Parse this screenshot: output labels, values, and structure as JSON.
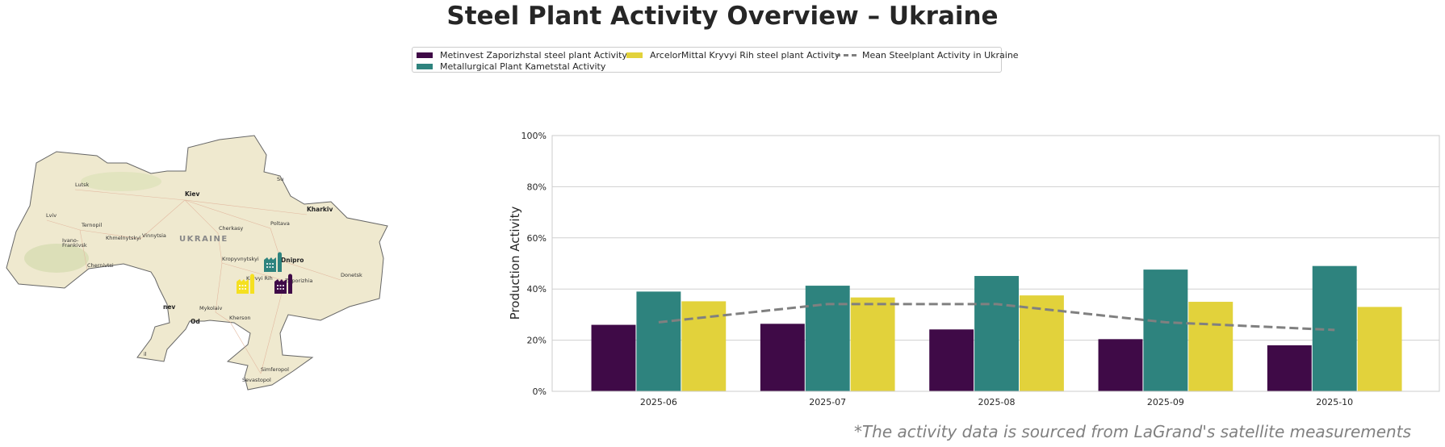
{
  "title": "Steel Plant Activity Overview – Ukraine",
  "footnote": "*The activity data is sourced from LaGrand's satellite measurements",
  "legend": {
    "items": [
      {
        "label": "Metinvest Zaporizhstal steel plant Activity",
        "color": "#3f0a47"
      },
      {
        "label": "Metallurgical Plant Kametstal Activity",
        "color": "#2e837e"
      },
      {
        "label": "ArcelorMittal Kryvyi Rih steel plant Activity",
        "color": "#e2d23b"
      },
      {
        "label": "Mean Steelplant Activity in Ukraine",
        "color": "#808080"
      }
    ]
  },
  "map": {
    "country_label": "UKRAINE",
    "cities": [
      "Lutsk",
      "Kiev",
      "Kharkiv",
      "Su",
      "Lviv",
      "Ternopil",
      "Khmelnytskyi",
      "Vinnytsia",
      "Cherkasy",
      "Poltava",
      "Ivano-",
      "Frankivsk",
      "Chernivtsi",
      "Kropyvnytskyi",
      "Dnipro",
      "Kryvyi Rih",
      "Zaporizhia",
      "Donetsk",
      "Mykolaiv",
      "Kherson",
      "Simferopol",
      "Sevastopol",
      "nev",
      "Od",
      "il"
    ],
    "plants": [
      {
        "name": "Metallurgical Plant Kametstal",
        "color": "#2e837e",
        "icon": "factory-icon"
      },
      {
        "name": "ArcelorMittal Kryvyi Rih",
        "color": "#f5e020",
        "icon": "factory-icon"
      },
      {
        "name": "Metinvest Zaporizhstal",
        "color": "#3f0a47",
        "icon": "factory-icon"
      }
    ]
  },
  "chart_data": {
    "type": "bar",
    "title": "Steel Plant Activity Overview – Ukraine",
    "xlabel": "",
    "ylabel": "Production Activity",
    "ylim": [
      0,
      100
    ],
    "yticks": [
      "0%",
      "20%",
      "40%",
      "60%",
      "80%",
      "100%"
    ],
    "grid": "horizontal",
    "legend_placement": "top-center",
    "categories": [
      "2025-06",
      "2025-07",
      "2025-08",
      "2025-09",
      "2025-10"
    ],
    "series": [
      {
        "name": "Metinvest Zaporizhstal steel plant Activity",
        "color": "#3f0a47",
        "values": [
          26,
          26.4,
          24.2,
          20.4,
          18
        ]
      },
      {
        "name": "Metallurgical Plant Kametstal Activity",
        "color": "#2e837e",
        "values": [
          39,
          41.3,
          45.1,
          47.6,
          49
        ]
      },
      {
        "name": "ArcelorMittal Kryvyi Rih steel plant Activity",
        "color": "#e2d23b",
        "values": [
          35.2,
          36.7,
          37.5,
          35,
          33
        ]
      }
    ],
    "mean_line": {
      "name": "Mean Steelplant Activity in Ukraine",
      "type": "line",
      "style": "dashed",
      "color": "#808080",
      "values": [
        27,
        34.1,
        34.1,
        27,
        24
      ]
    }
  }
}
